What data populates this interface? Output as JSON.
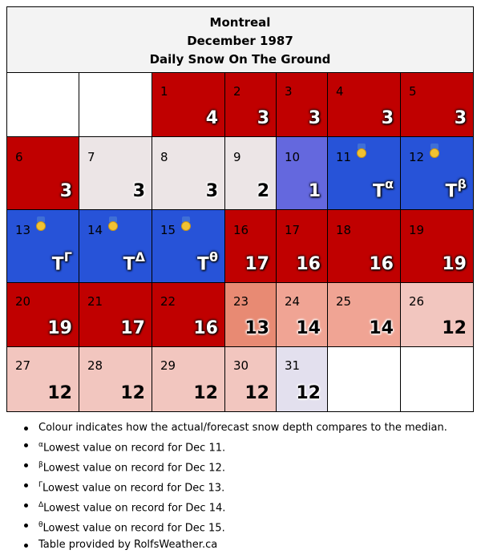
{
  "header": {
    "city": "Montreal",
    "month": "December 1987",
    "subtitle": "Daily Snow On The Ground"
  },
  "colors": {
    "dark_red": "#c00000",
    "medium_red": "#e88a73",
    "salmon": "#f0a494",
    "light_pink": "#f2c6bf",
    "pale_grey": "#ece5e6",
    "lavender": "#e3e0ee",
    "periwinkle": "#6468de",
    "blue": "#2753d8",
    "white": "#ffffff"
  },
  "calendar": {
    "rows": [
      [
        {
          "day": "",
          "value": "",
          "sup": "",
          "color": "#ffffff"
        },
        {
          "day": "",
          "value": "",
          "sup": "",
          "color": "#ffffff"
        },
        {
          "day": "1",
          "value": "4",
          "sup": "",
          "color": "#c00000"
        },
        {
          "day": "2",
          "value": "3",
          "sup": "",
          "color": "#c00000"
        },
        {
          "day": "3",
          "value": "3",
          "sup": "",
          "color": "#c00000"
        },
        {
          "day": "4",
          "value": "3",
          "sup": "",
          "color": "#c00000"
        },
        {
          "day": "5",
          "value": "3",
          "sup": "",
          "color": "#c00000"
        }
      ],
      [
        {
          "day": "6",
          "value": "3",
          "sup": "",
          "color": "#c00000"
        },
        {
          "day": "7",
          "value": "3",
          "sup": "",
          "color": "#ece5e6"
        },
        {
          "day": "8",
          "value": "3",
          "sup": "",
          "color": "#ece5e6"
        },
        {
          "day": "9",
          "value": "2",
          "sup": "",
          "color": "#ece5e6"
        },
        {
          "day": "10",
          "value": "1",
          "sup": "",
          "color": "#6468de"
        },
        {
          "day": "11",
          "value": "T",
          "sup": "α",
          "color": "#2753d8",
          "medal": true
        },
        {
          "day": "12",
          "value": "T",
          "sup": "β",
          "color": "#2753d8",
          "medal": true
        }
      ],
      [
        {
          "day": "13",
          "value": "T",
          "sup": "Γ",
          "color": "#2753d8",
          "medal": true
        },
        {
          "day": "14",
          "value": "T",
          "sup": "Δ",
          "color": "#2753d8",
          "medal": true
        },
        {
          "day": "15",
          "value": "T",
          "sup": "θ",
          "color": "#2753d8",
          "medal": true
        },
        {
          "day": "16",
          "value": "17",
          "sup": "",
          "color": "#c00000"
        },
        {
          "day": "17",
          "value": "16",
          "sup": "",
          "color": "#c00000"
        },
        {
          "day": "18",
          "value": "16",
          "sup": "",
          "color": "#c00000"
        },
        {
          "day": "19",
          "value": "19",
          "sup": "",
          "color": "#c00000"
        }
      ],
      [
        {
          "day": "20",
          "value": "19",
          "sup": "",
          "color": "#c00000"
        },
        {
          "day": "21",
          "value": "17",
          "sup": "",
          "color": "#c00000"
        },
        {
          "day": "22",
          "value": "16",
          "sup": "",
          "color": "#c00000"
        },
        {
          "day": "23",
          "value": "13",
          "sup": "",
          "color": "#e88a73"
        },
        {
          "day": "24",
          "value": "14",
          "sup": "",
          "color": "#f0a494"
        },
        {
          "day": "25",
          "value": "14",
          "sup": "",
          "color": "#f0a494"
        },
        {
          "day": "26",
          "value": "12",
          "sup": "",
          "color": "#f2c6bf"
        }
      ],
      [
        {
          "day": "27",
          "value": "12",
          "sup": "",
          "color": "#f2c6bf"
        },
        {
          "day": "28",
          "value": "12",
          "sup": "",
          "color": "#f2c6bf"
        },
        {
          "day": "29",
          "value": "12",
          "sup": "",
          "color": "#f2c6bf"
        },
        {
          "day": "30",
          "value": "12",
          "sup": "",
          "color": "#f2c6bf"
        },
        {
          "day": "31",
          "value": "12",
          "sup": "",
          "color": "#e3e0ee"
        },
        {
          "day": "",
          "value": "",
          "sup": "",
          "color": "#ffffff"
        },
        {
          "day": "",
          "value": "",
          "sup": "",
          "color": "#ffffff"
        }
      ]
    ]
  },
  "legend": {
    "items": [
      {
        "sup": "",
        "text": "Colour indicates how the actual/forecast snow depth compares to the median."
      },
      {
        "sup": "α",
        "text": "Lowest value on record for Dec 11."
      },
      {
        "sup": "β",
        "text": "Lowest value on record for Dec 12."
      },
      {
        "sup": "Γ",
        "text": "Lowest value on record for Dec 13."
      },
      {
        "sup": "Δ",
        "text": "Lowest value on record for Dec 14."
      },
      {
        "sup": "θ",
        "text": "Lowest value on record for Dec 15."
      },
      {
        "sup": "",
        "text": "Table provided by RolfsWeather.ca"
      }
    ]
  }
}
